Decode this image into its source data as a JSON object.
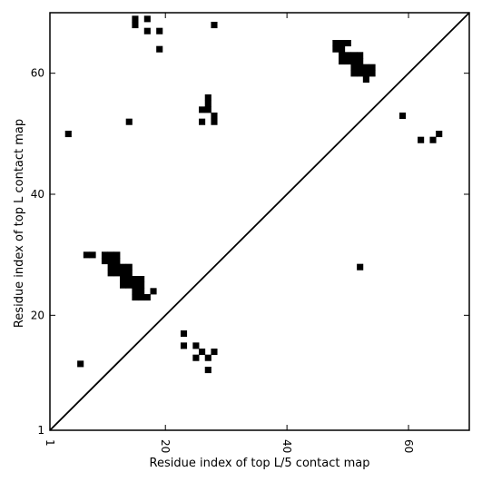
{
  "chart_data": {
    "type": "heatmap",
    "title": "",
    "xlabel": "Residue index of top L/5 contact map",
    "ylabel": "Residue index of top L contact map",
    "xlim": [
      1,
      70
    ],
    "ylim": [
      1,
      70
    ],
    "x_ticks": [
      1,
      20,
      40,
      60
    ],
    "y_ticks": [
      1,
      20,
      40,
      60
    ],
    "x_tick_labels": [
      "1",
      "20",
      "40",
      "60"
    ],
    "y_tick_labels": [
      "1",
      "20",
      "40",
      "60"
    ],
    "x_tick_label_rotation": 90,
    "grid": false,
    "diagonal_line": true,
    "cell_color": "#000000",
    "upper_left_cells": [
      [
        15,
        68
      ],
      [
        15,
        69
      ],
      [
        17,
        69
      ],
      [
        17,
        67
      ],
      [
        19,
        67
      ],
      [
        19,
        64
      ],
      [
        28,
        68
      ],
      [
        48,
        65
      ],
      [
        49,
        65
      ],
      [
        50,
        65
      ],
      [
        48,
        64
      ],
      [
        49,
        64
      ],
      [
        49,
        63
      ],
      [
        50,
        63
      ],
      [
        51,
        63
      ],
      [
        52,
        63
      ],
      [
        49,
        62
      ],
      [
        50,
        62
      ],
      [
        51,
        62
      ],
      [
        52,
        62
      ],
      [
        51,
        61
      ],
      [
        52,
        61
      ],
      [
        53,
        61
      ],
      [
        54,
        61
      ],
      [
        51,
        60
      ],
      [
        52,
        60
      ],
      [
        53,
        60
      ],
      [
        54,
        60
      ],
      [
        53,
        59
      ],
      [
        27,
        56
      ],
      [
        27,
        55
      ],
      [
        26,
        54
      ],
      [
        27,
        54
      ],
      [
        28,
        53
      ],
      [
        26,
        52
      ],
      [
        28,
        52
      ],
      [
        14,
        52
      ],
      [
        4,
        50
      ],
      [
        59,
        53
      ],
      [
        62,
        49
      ],
      [
        64,
        49
      ],
      [
        65,
        50
      ]
    ],
    "lower_right_cells": [
      [
        7,
        30
      ],
      [
        8,
        30
      ],
      [
        10,
        30
      ],
      [
        11,
        30
      ],
      [
        12,
        30
      ],
      [
        10,
        29
      ],
      [
        11,
        29
      ],
      [
        12,
        29
      ],
      [
        11,
        28
      ],
      [
        12,
        28
      ],
      [
        13,
        28
      ],
      [
        14,
        28
      ],
      [
        11,
        27
      ],
      [
        12,
        27
      ],
      [
        13,
        27
      ],
      [
        14,
        27
      ],
      [
        13,
        26
      ],
      [
        14,
        26
      ],
      [
        15,
        26
      ],
      [
        16,
        26
      ],
      [
        13,
        25
      ],
      [
        14,
        25
      ],
      [
        15,
        25
      ],
      [
        16,
        25
      ],
      [
        15,
        24
      ],
      [
        16,
        24
      ],
      [
        18,
        24
      ],
      [
        15,
        23
      ],
      [
        16,
        23
      ],
      [
        17,
        23
      ],
      [
        52,
        28
      ],
      [
        23,
        17
      ],
      [
        23,
        15
      ],
      [
        25,
        15
      ],
      [
        26,
        14
      ],
      [
        28,
        14
      ],
      [
        25,
        13
      ],
      [
        27,
        13
      ],
      [
        27,
        11
      ],
      [
        6,
        12
      ]
    ]
  }
}
